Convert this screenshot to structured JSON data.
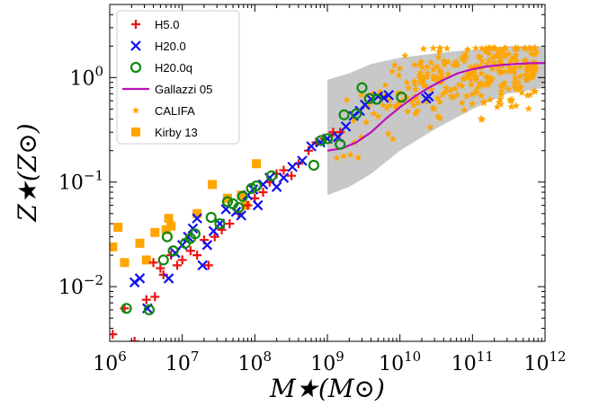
{
  "chart_data": {
    "type": "scatter",
    "title": "",
    "xlabel": "M★(M⊙)",
    "ylabel": "Z★(Z⊙)",
    "xscale": "log",
    "yscale": "log",
    "xlim": [
      1000000.0,
      1000000000000.0
    ],
    "ylim": [
      0.003,
      5
    ],
    "x_ticks": [
      1000000.0,
      10000000.0,
      100000000.0,
      1000000000.0,
      10000000000.0,
      100000000000.0,
      1000000000000.0
    ],
    "x_tick_labels": [
      {
        "base": "10",
        "exp": "6"
      },
      {
        "base": "10",
        "exp": "7"
      },
      {
        "base": "10",
        "exp": "8"
      },
      {
        "base": "10",
        "exp": "9"
      },
      {
        "base": "10",
        "exp": "10"
      },
      {
        "base": "10",
        "exp": "11"
      },
      {
        "base": "10",
        "exp": "12"
      }
    ],
    "y_ticks": [
      0.01,
      0.1,
      1
    ],
    "y_tick_labels": [
      {
        "base": "10",
        "exp": "−2"
      },
      {
        "base": "10",
        "exp": "−1"
      },
      {
        "base": "10",
        "exp": "0"
      }
    ],
    "grid": false,
    "legend_position": "top-left",
    "band": {
      "name": "",
      "color": "#c8c8c8",
      "x": [
        1000000000.0,
        2000000000.0,
        4000000000.0,
        10000000000.0,
        30000000000.0,
        100000000000.0,
        300000000000.0,
        1000000000000.0
      ],
      "upper": [
        0.95,
        1.1,
        1.35,
        1.55,
        1.7,
        1.85,
        2.0,
        2.0
      ],
      "lower": [
        0.075,
        0.09,
        0.12,
        0.2,
        0.32,
        0.5,
        0.7,
        0.8
      ]
    },
    "series": [
      {
        "name": "H5.0",
        "marker": "plus",
        "color": "#ee1111",
        "points": [
          [
            1100000.0,
            0.0035
          ],
          [
            1600000.0,
            0.0062
          ],
          [
            2200000.0,
            0.003
          ],
          [
            3200000.0,
            0.0075
          ],
          [
            4200000.0,
            0.008
          ],
          [
            5000000.0,
            0.015
          ],
          [
            4000000.0,
            0.017
          ],
          [
            5500000.0,
            0.013
          ],
          [
            7000000.0,
            0.02
          ],
          [
            8500000.0,
            0.016
          ],
          [
            10000000.0,
            0.018
          ],
          [
            13000000.0,
            0.022
          ],
          [
            16000000.0,
            0.02
          ],
          [
            20000000.0,
            0.028
          ],
          [
            23000000.0,
            0.016
          ],
          [
            28000000.0,
            0.03
          ],
          [
            35000000.0,
            0.035
          ],
          [
            45000000.0,
            0.04
          ],
          [
            60000000.0,
            0.05
          ],
          [
            80000000.0,
            0.06
          ],
          [
            100000000.0,
            0.07
          ],
          [
            130000000.0,
            0.08
          ],
          [
            160000000.0,
            0.1
          ],
          [
            200000000.0,
            0.12
          ],
          [
            250000000.0,
            0.13
          ],
          [
            320000000.0,
            0.115
          ],
          [
            400000000.0,
            0.15
          ],
          [
            550000000.0,
            0.2
          ],
          [
            700000000.0,
            0.24
          ],
          [
            900000000.0,
            0.26
          ],
          [
            1200000000.0,
            0.3
          ],
          [
            1500000000.0,
            0.3
          ]
        ]
      },
      {
        "name": "H20.0",
        "marker": "x",
        "color": "#1111ee",
        "points": [
          [
            2200000.0,
            0.011
          ],
          [
            2600000.0,
            0.012
          ],
          [
            3300000.0,
            0.0062
          ],
          [
            6500000.0,
            0.012
          ],
          [
            8000000.0,
            0.021
          ],
          [
            10000000.0,
            0.025
          ],
          [
            12000000.0,
            0.03
          ],
          [
            14000000.0,
            0.036
          ],
          [
            16000000.0,
            0.045
          ],
          [
            19000000.0,
            0.016
          ],
          [
            22000000.0,
            0.025
          ],
          [
            27000000.0,
            0.034
          ],
          [
            33000000.0,
            0.04
          ],
          [
            40000000.0,
            0.055
          ],
          [
            55000000.0,
            0.052
          ],
          [
            65000000.0,
            0.048
          ],
          [
            80000000.0,
            0.075
          ],
          [
            95000000.0,
            0.085
          ],
          [
            110000000.0,
            0.06
          ],
          [
            130000000.0,
            0.095
          ],
          [
            160000000.0,
            0.11
          ],
          [
            200000000.0,
            0.09
          ],
          [
            250000000.0,
            0.11
          ],
          [
            330000000.0,
            0.14
          ],
          [
            450000000.0,
            0.16
          ],
          [
            600000000.0,
            0.22
          ],
          [
            800000000.0,
            0.24
          ],
          [
            1000000000.0,
            0.26
          ],
          [
            1400000000.0,
            0.27
          ],
          [
            1800000000.0,
            0.34
          ],
          [
            2300000000.0,
            0.43
          ],
          [
            2800000000.0,
            0.48
          ],
          [
            3300000000.0,
            0.55
          ],
          [
            4000000000.0,
            0.62
          ],
          [
            5000000000.0,
            0.66
          ],
          [
            6000000000.0,
            0.64
          ],
          [
            7000000000.0,
            0.68
          ],
          [
            23000000000.0,
            0.63
          ],
          [
            25000000000.0,
            0.66
          ]
        ]
      },
      {
        "name": "H20.0q",
        "marker": "circle",
        "color": "#118811",
        "points": [
          [
            1700000.0,
            0.0062
          ],
          [
            3500000.0,
            0.006
          ],
          [
            5500000.0,
            0.018
          ],
          [
            6200000.0,
            0.03
          ],
          [
            7500000.0,
            0.022
          ],
          [
            11000000.0,
            0.026
          ],
          [
            13000000.0,
            0.029
          ],
          [
            15000000.0,
            0.032
          ],
          [
            25000000.0,
            0.046
          ],
          [
            33000000.0,
            0.04
          ],
          [
            42000000.0,
            0.065
          ],
          [
            50000000.0,
            0.062
          ],
          [
            60000000.0,
            0.057
          ],
          [
            68000000.0,
            0.073
          ],
          [
            90000000.0,
            0.087
          ],
          [
            105000000.0,
            0.092
          ],
          [
            170000000.0,
            0.115
          ],
          [
            650000000.0,
            0.145
          ],
          [
            820000000.0,
            0.25
          ],
          [
            1000000000.0,
            0.26
          ],
          [
            1500000000.0,
            0.23
          ],
          [
            1700000000.0,
            0.44
          ],
          [
            2500000000.0,
            0.45
          ],
          [
            3000000000.0,
            0.8
          ],
          [
            3800000000.0,
            0.63
          ],
          [
            4800000000.0,
            0.62
          ],
          [
            10500000000.0,
            0.65
          ]
        ]
      }
    ],
    "line": {
      "name": "Gallazzi 05",
      "color": "#bb11bb",
      "x": [
        1000000000.0,
        1600000000.0,
        2500000000.0,
        4000000000.0,
        6300000000.0,
        10000000000.0,
        16000000000.0,
        25000000000.0,
        40000000000.0,
        63000000000.0,
        100000000000.0,
        160000000000.0,
        250000000000.0,
        400000000000.0,
        630000000000.0,
        1000000000000.0
      ],
      "y": [
        0.2,
        0.21,
        0.24,
        0.3,
        0.4,
        0.52,
        0.66,
        0.8,
        0.95,
        1.1,
        1.2,
        1.28,
        1.32,
        1.35,
        1.37,
        1.38
      ]
    },
    "califa": {
      "name": "CALIFA",
      "color": "#ffa500",
      "marker": "star"
    },
    "kirby": {
      "name": "Kirby 13",
      "marker": "square",
      "color": "#ffa500",
      "points": [
        [
          1100000.0,
          0.024
        ],
        [
          1300000.0,
          0.037
        ],
        [
          1600000.0,
          0.017
        ],
        [
          2600000.0,
          0.026
        ],
        [
          3200000.0,
          0.018
        ],
        [
          4200000.0,
          0.033
        ],
        [
          6500000.0,
          0.045
        ],
        [
          6000000.0,
          0.035
        ],
        [
          7000000.0,
          0.038
        ],
        [
          16000000.0,
          0.05
        ],
        [
          26000000.0,
          0.095
        ],
        [
          42000000.0,
          0.07
        ],
        [
          65000000.0,
          0.075
        ],
        [
          75000000.0,
          0.06
        ],
        [
          105000000.0,
          0.15
        ]
      ]
    },
    "legend": [
      "H5.0",
      "H20.0",
      "H20.0q",
      "Gallazzi 05",
      "CALIFA",
      "Kirby 13"
    ]
  }
}
